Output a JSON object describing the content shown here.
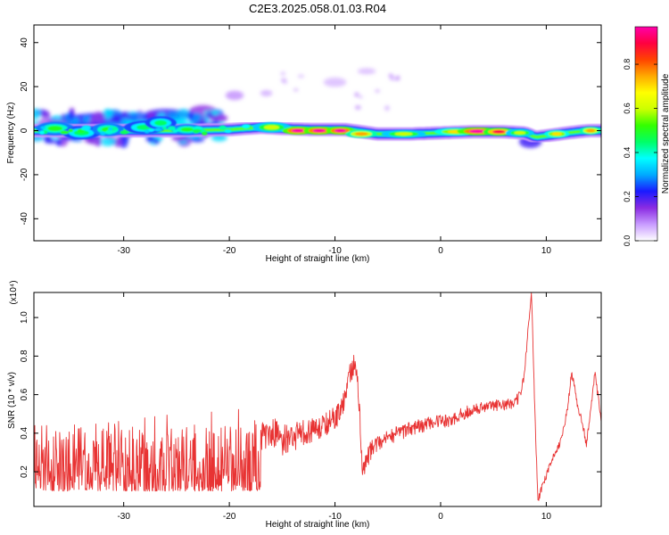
{
  "figure": {
    "title": "C2E3.2025.058.01.03.R04"
  },
  "chart_data": [
    {
      "type": "heatmap",
      "xlabel": "Height of straight line (km)",
      "ylabel": "Frequency (Hz)",
      "xlim": [
        -38.5,
        15.2
      ],
      "ylim": [
        -50,
        48
      ],
      "xticks": [
        -30,
        -20,
        -10,
        0,
        10
      ],
      "yticks": [
        -40,
        -20,
        0,
        20,
        40
      ],
      "grid": false,
      "colorbar": {
        "label": "Normalized spectral amplitude",
        "range": [
          0,
          0.97
        ],
        "ticks": [
          0.0,
          0.2,
          0.4,
          0.6,
          0.8
        ],
        "colors": [
          "#ffffff",
          "#c89bff",
          "#8a2be2",
          "#1a1aff",
          "#00aaff",
          "#00ffff",
          "#00ff66",
          "#33ff00",
          "#ccff00",
          "#ffff00",
          "#ffaa00",
          "#ff4400",
          "#ff0040",
          "#ff00aa"
        ]
      },
      "ridge": {
        "x": [
          -38.5,
          -34,
          -30,
          -25,
          -20,
          -17,
          -15,
          -12,
          -9,
          -6,
          -3,
          0,
          3,
          6,
          8,
          9,
          10.5,
          12,
          14,
          15.2
        ],
        "y": [
          0,
          0,
          0,
          0,
          0.5,
          1.5,
          1,
          0.5,
          0.5,
          -1.5,
          -1.5,
          -1,
          -0.5,
          -0.5,
          -1,
          -3,
          -2,
          -1,
          0,
          0
        ]
      },
      "blobs": [
        {
          "x": -36.5,
          "y": 1,
          "w": 1.2,
          "h": 2.5,
          "a": 0.5
        },
        {
          "x": -34,
          "y": -1,
          "w": 1.2,
          "h": 2.5,
          "a": 0.45
        },
        {
          "x": -31.5,
          "y": 0.5,
          "w": 1.0,
          "h": 2.5,
          "a": 0.5
        },
        {
          "x": -28,
          "y": 1.5,
          "w": 1.3,
          "h": 2.5,
          "a": 0.45
        },
        {
          "x": -26.5,
          "y": 3.5,
          "w": 1.0,
          "h": 2.5,
          "a": 0.45
        },
        {
          "x": -24,
          "y": 0.5,
          "w": 1.0,
          "h": 2,
          "a": 0.5
        },
        {
          "x": -16,
          "y": 1.5,
          "w": 1.2,
          "h": 2,
          "a": 0.6
        },
        {
          "x": -13.5,
          "y": 0,
          "w": 1.0,
          "h": 1.5,
          "a": 0.97
        },
        {
          "x": -11.5,
          "y": 0,
          "w": 1.0,
          "h": 1.5,
          "a": 0.97
        },
        {
          "x": -9.5,
          "y": 0,
          "w": 0.9,
          "h": 1.5,
          "a": 0.97
        },
        {
          "x": -7.5,
          "y": -1.5,
          "w": 1.0,
          "h": 1.5,
          "a": 0.75
        },
        {
          "x": -3.5,
          "y": -1.5,
          "w": 1.4,
          "h": 1.5,
          "a": 0.6
        },
        {
          "x": 1.5,
          "y": -0.5,
          "w": 1.4,
          "h": 1.5,
          "a": 0.7
        },
        {
          "x": 3.5,
          "y": -0.3,
          "w": 1.3,
          "h": 1.5,
          "a": 0.97
        },
        {
          "x": 5.5,
          "y": -0.5,
          "w": 1.0,
          "h": 1.5,
          "a": 0.9
        },
        {
          "x": 7.5,
          "y": -1,
          "w": 0.9,
          "h": 1.5,
          "a": 0.6
        },
        {
          "x": 11,
          "y": -1.5,
          "w": 0.8,
          "h": 1.5,
          "a": 0.7
        },
        {
          "x": 14.2,
          "y": 0,
          "w": 0.7,
          "h": 1.5,
          "a": 0.75
        }
      ],
      "clouds": [
        {
          "x": -31,
          "y": 4,
          "w": 7.5,
          "h": 6,
          "a": 0.22
        },
        {
          "x": -26,
          "y": 7,
          "w": 3.0,
          "h": 4,
          "a": 0.2
        },
        {
          "x": -22.5,
          "y": 8,
          "w": 2.0,
          "h": 5,
          "a": 0.14
        },
        {
          "x": -19.5,
          "y": 16,
          "w": 1.2,
          "h": 3,
          "a": 0.08
        },
        {
          "x": -16.5,
          "y": 17,
          "w": 0.8,
          "h": 2,
          "a": 0.06
        },
        {
          "x": -10,
          "y": 22,
          "w": 1.5,
          "h": 3,
          "a": 0.05
        },
        {
          "x": -7,
          "y": 27,
          "w": 1.2,
          "h": 2,
          "a": 0.05
        },
        {
          "x": 8.5,
          "y": -5,
          "w": 1.5,
          "h": 4,
          "a": 0.2
        }
      ]
    },
    {
      "type": "line",
      "xlabel": "Height of straight line (km)",
      "ylabel": "SNR (10 * v/v)",
      "multiplier": "(x10⁴)",
      "xlim": [
        -38.5,
        15.2
      ],
      "ylim": [
        0.02,
        1.13
      ],
      "xticks": [
        -30,
        -20,
        -10,
        0,
        10
      ],
      "yticks": [
        0.2,
        0.4,
        0.6,
        0.8,
        1.0
      ],
      "grid": false,
      "color": "#e83333",
      "envelope": {
        "x": [
          -38.5,
          -36,
          -32,
          -28,
          -25,
          -22,
          -20,
          -18,
          -17,
          -16,
          -15,
          -13,
          -11,
          -9.5,
          -8.6,
          -8.1,
          -7.7,
          -7.4,
          -6.5,
          -5,
          -3,
          -1,
          1,
          2,
          3,
          5,
          7,
          7.6,
          8.0,
          8.3,
          8.6,
          8.9,
          9.2,
          9.6,
          10.4,
          11.4,
          12.0,
          12.4,
          12.9,
          13.4,
          13.8,
          14.2,
          14.6,
          15.2
        ],
        "y": [
          0.24,
          0.24,
          0.25,
          0.28,
          0.3,
          0.31,
          0.31,
          0.34,
          0.38,
          0.42,
          0.36,
          0.4,
          0.44,
          0.5,
          0.7,
          0.78,
          0.55,
          0.22,
          0.32,
          0.38,
          0.42,
          0.45,
          0.47,
          0.5,
          0.52,
          0.54,
          0.56,
          0.6,
          0.75,
          0.95,
          1.13,
          0.55,
          0.05,
          0.12,
          0.24,
          0.36,
          0.52,
          0.72,
          0.56,
          0.46,
          0.34,
          0.52,
          0.72,
          0.46
        ]
      },
      "noise": {
        "x": [
          -38.5,
          -20,
          -17,
          -15,
          -13,
          -11,
          -9,
          -7.5,
          -5,
          0,
          5,
          7.9,
          8.2,
          12,
          15.2
        ],
        "y": [
          0.17,
          0.15,
          0.09,
          0.08,
          0.07,
          0.06,
          0.06,
          0.06,
          0.04,
          0.035,
          0.03,
          0.03,
          0.02,
          0.02,
          0.02
        ]
      }
    }
  ]
}
